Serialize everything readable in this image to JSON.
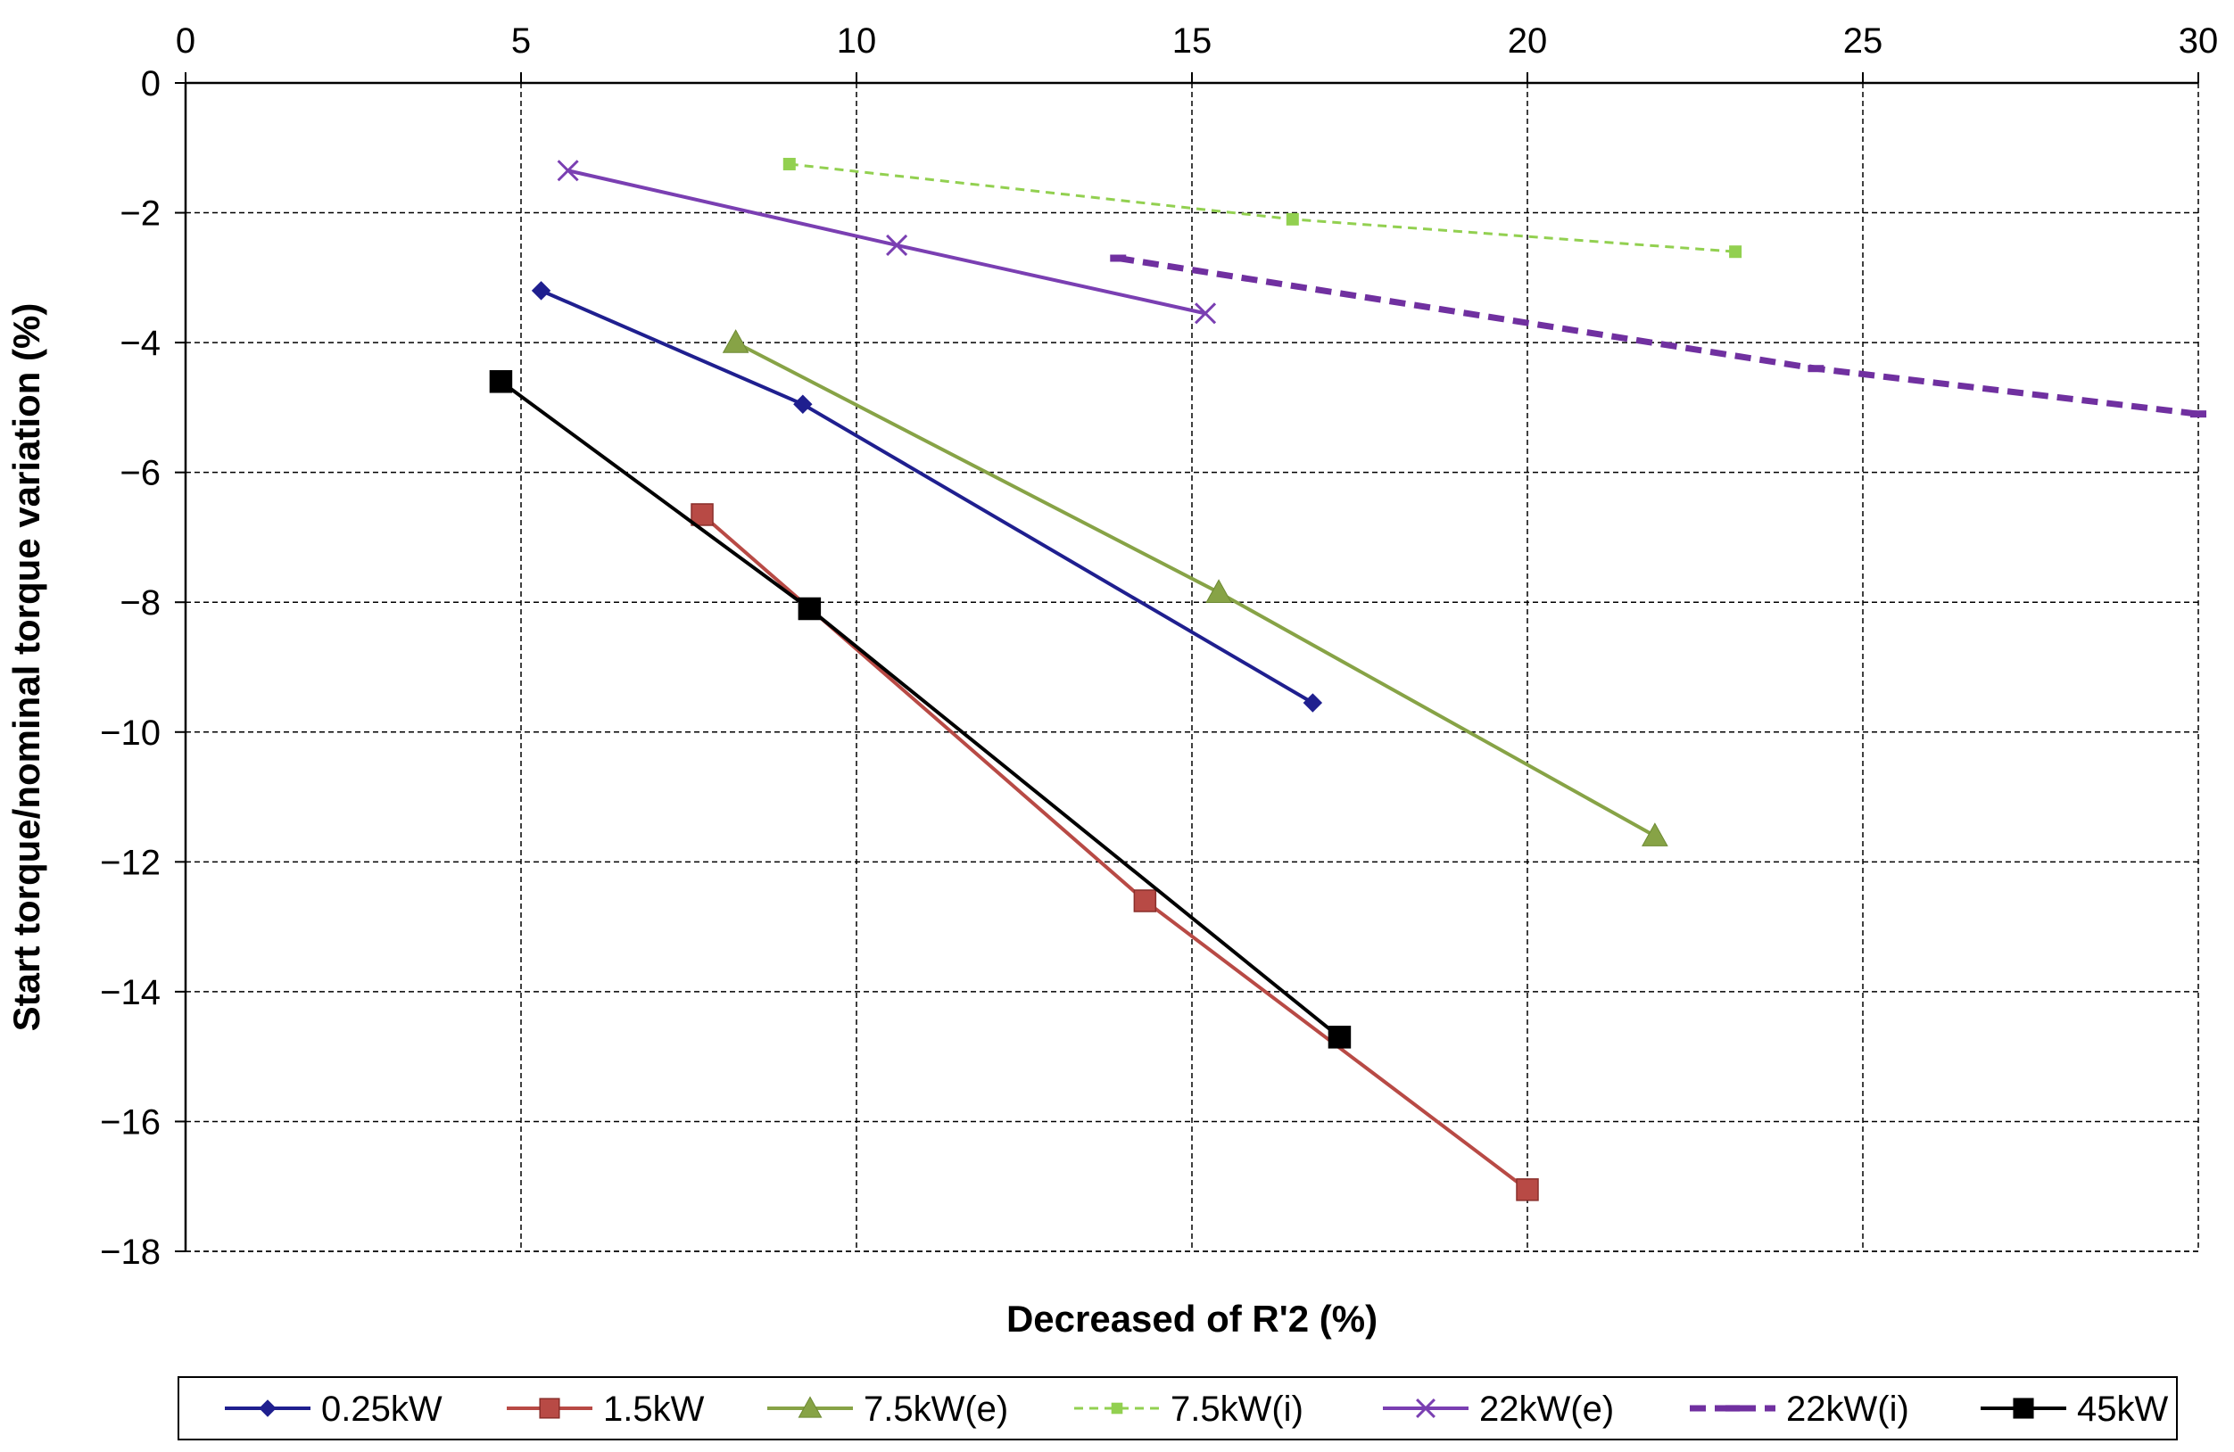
{
  "chart_data": {
    "type": "line",
    "title": "",
    "xlabel": "Decreased of R'2 (%)",
    "ylabel": "Start torque/nominal torque  variation (%)",
    "xlim": [
      0,
      30
    ],
    "ylim": [
      -18,
      0
    ],
    "x_ticks": [
      0,
      5,
      10,
      15,
      20,
      25,
      30
    ],
    "y_ticks": [
      0,
      -2,
      -4,
      -6,
      -8,
      -10,
      -12,
      -14,
      -16,
      -18
    ],
    "x_tick_labels": [
      "0",
      "5",
      "10",
      "15",
      "20",
      "25",
      "30"
    ],
    "y_tick_labels": [
      "0",
      "−2",
      "−4",
      "−6",
      "−8",
      "−10",
      "−12",
      "−14",
      "−16",
      "−18"
    ],
    "x_axis_position": "top",
    "grid": true,
    "legend_position": "bottom",
    "series": [
      {
        "name": "0.25kW",
        "color": "#1f1f8f",
        "marker": "diamond",
        "dash": "solid",
        "x": [
          5.3,
          9.2,
          16.8
        ],
        "y": [
          -3.2,
          -4.95,
          -9.55
        ]
      },
      {
        "name": "1.5kW",
        "color": "#b84a45",
        "marker": "square",
        "dash": "solid",
        "x": [
          7.7,
          14.3,
          20.0
        ],
        "y": [
          -6.65,
          -12.6,
          -17.05
        ]
      },
      {
        "name": "7.5kW(e)",
        "color": "#87a346",
        "marker": "triangle",
        "dash": "solid",
        "x": [
          8.2,
          15.4,
          21.9
        ],
        "y": [
          -4.0,
          -7.85,
          -11.6
        ]
      },
      {
        "name": "7.5kW(i)",
        "color": "#92d050",
        "marker": "small-square",
        "dash": "dashed",
        "x": [
          9.0,
          16.5,
          23.1
        ],
        "y": [
          -1.25,
          -2.1,
          -2.6
        ]
      },
      {
        "name": "22kW(e)",
        "color": "#7a3fb2",
        "marker": "cross",
        "dash": "solid",
        "x": [
          5.7,
          10.6,
          15.2
        ],
        "y": [
          -1.35,
          -2.5,
          -3.55
        ]
      },
      {
        "name": "22kW(i)",
        "color": "#7030a0",
        "marker": "dash",
        "dash": "bold-dashed",
        "x": [
          13.9,
          24.3,
          30.0
        ],
        "y": [
          -2.7,
          -4.4,
          -5.1
        ]
      },
      {
        "name": "45kW",
        "color": "#000000",
        "marker": "square",
        "dash": "solid",
        "x": [
          4.7,
          9.3,
          17.2
        ],
        "y": [
          -4.6,
          -8.1,
          -14.7
        ]
      }
    ]
  }
}
